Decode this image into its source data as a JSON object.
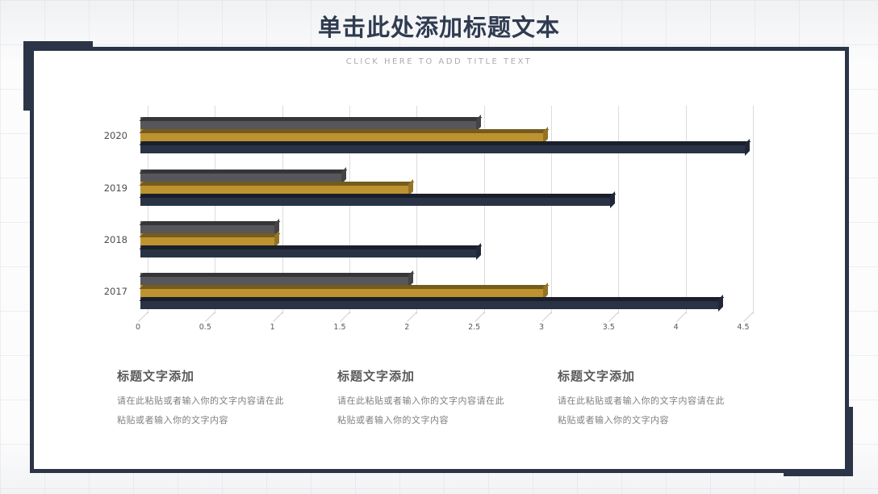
{
  "slide": {
    "title": "单击此处添加标题文本",
    "subtitle": "CLICK  HERE  TO  ADD  TITLE  TEXT"
  },
  "colors": {
    "frame_navy": "#2b3547",
    "title_navy": "#2f3b50",
    "gridline": "#dcdcdc",
    "tick_label": "#595959",
    "category_label": "#4d4d4d",
    "heading_gray": "#595959",
    "body_gray": "#7f7f7f"
  },
  "chart_data": {
    "type": "bar",
    "orientation": "horizontal",
    "style": "3d",
    "title": "",
    "categories": [
      "2020",
      "2019",
      "2018",
      "2017"
    ],
    "series": [
      {
        "name": "gray-series",
        "color": "#57565a",
        "values": [
          2.5,
          1.5,
          1.0,
          2.0
        ]
      },
      {
        "name": "gold-series",
        "color": "#bd9330",
        "values": [
          3.0,
          2.0,
          1.0,
          3.0
        ]
      },
      {
        "name": "navy-series",
        "color": "#2a3245",
        "values": [
          4.5,
          3.5,
          2.5,
          4.3
        ]
      }
    ],
    "xlim": [
      0,
      4.5
    ],
    "x_ticks": [
      "0",
      "0.5",
      "1",
      "1.5",
      "2",
      "2.5",
      "3",
      "3.5",
      "4",
      "4.5"
    ],
    "grid": true,
    "legend": false
  },
  "text_blocks": [
    {
      "heading": "标题文字添加",
      "body_line1": "请在此粘贴或者输入你的文字内容请在此",
      "body_line2": "粘贴或者输入你的文字内容"
    },
    {
      "heading": "标题文字添加",
      "body_line1": "请在此粘贴或者输入你的文字内容请在此",
      "body_line2": "粘贴或者输入你的文字内容"
    },
    {
      "heading": "标题文字添加",
      "body_line1": "请在此粘贴或者输入你的文字内容请在此",
      "body_line2": "粘贴或者输入你的文字内容"
    }
  ]
}
